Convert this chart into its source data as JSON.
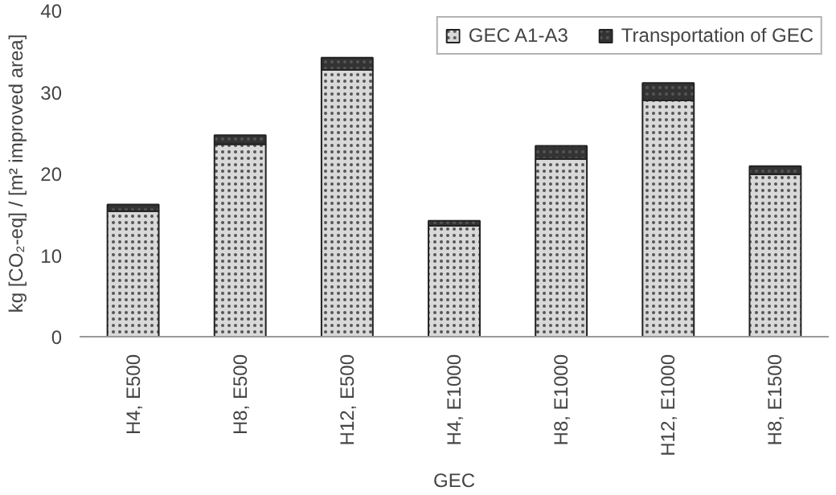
{
  "chart_data": {
    "type": "bar",
    "stacked": true,
    "xlabel": "GEC",
    "ylabel": "kg [CO₂-eq] / [m² improved area]",
    "categories": [
      "H4, E500",
      "H8, E500",
      "H12, E500",
      "H4, E1000",
      "H8, E1000",
      "H12, E1000",
      "H8, E1500"
    ],
    "series": [
      {
        "name": "GEC A1-A3",
        "color": "#d9d9d9",
        "values": [
          15.4,
          23.6,
          32.7,
          13.6,
          21.8,
          29.0,
          19.9
        ]
      },
      {
        "name": "Transportation of GEC",
        "color": "#333333",
        "values": [
          0.8,
          1.1,
          1.5,
          0.6,
          1.6,
          2.1,
          1.0
        ]
      }
    ],
    "ylim": [
      0,
      40
    ],
    "yticks": [
      0,
      10,
      20,
      30,
      40
    ],
    "grid": false,
    "legend": "top right"
  }
}
